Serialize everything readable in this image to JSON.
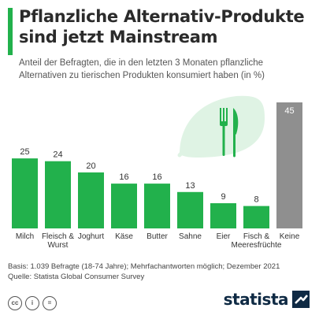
{
  "header": {
    "title_lines": [
      "Pflanzliche Alternativ-Produkte",
      "sind jetzt Mainstream"
    ],
    "subtitle_lines": [
      "Anteil der Befragten, die in den letzten 3 Monaten pflanzliche",
      "Alternativen zu tierischen Produkten konsumiert haben (in %)"
    ]
  },
  "colors": {
    "accent": "#22b14c",
    "highlight": "#8f8f8f",
    "illustration": "#dff3e4",
    "dark": "#0f2a44"
  },
  "chart_data": {
    "type": "bar",
    "categories": [
      "Milch",
      "Fleisch &\nWurst",
      "Joghurt",
      "Käse",
      "Butter",
      "Sahne",
      "Eier",
      "Fisch &\nMeeresfrüchte",
      "Keine"
    ],
    "values": [
      25,
      24,
      20,
      16,
      16,
      13,
      9,
      8,
      45
    ],
    "bar_colors": [
      "#22b14c",
      "#22b14c",
      "#22b14c",
      "#22b14c",
      "#22b14c",
      "#22b14c",
      "#22b14c",
      "#22b14c",
      "#8f8f8f"
    ],
    "ylim": [
      0,
      45
    ],
    "grid": false,
    "data_labels": true
  },
  "footer": {
    "basis": "Basis: 1.039 Befragte (18-74 Jahre); Mehrfachantworten möglich; Dezember 2021",
    "source": "Quelle: Statista Global Consumer Survey"
  },
  "license_icons": [
    "cc",
    "i",
    "="
  ],
  "brand": {
    "name": "statista",
    "icon": "statista-logo-icon"
  }
}
